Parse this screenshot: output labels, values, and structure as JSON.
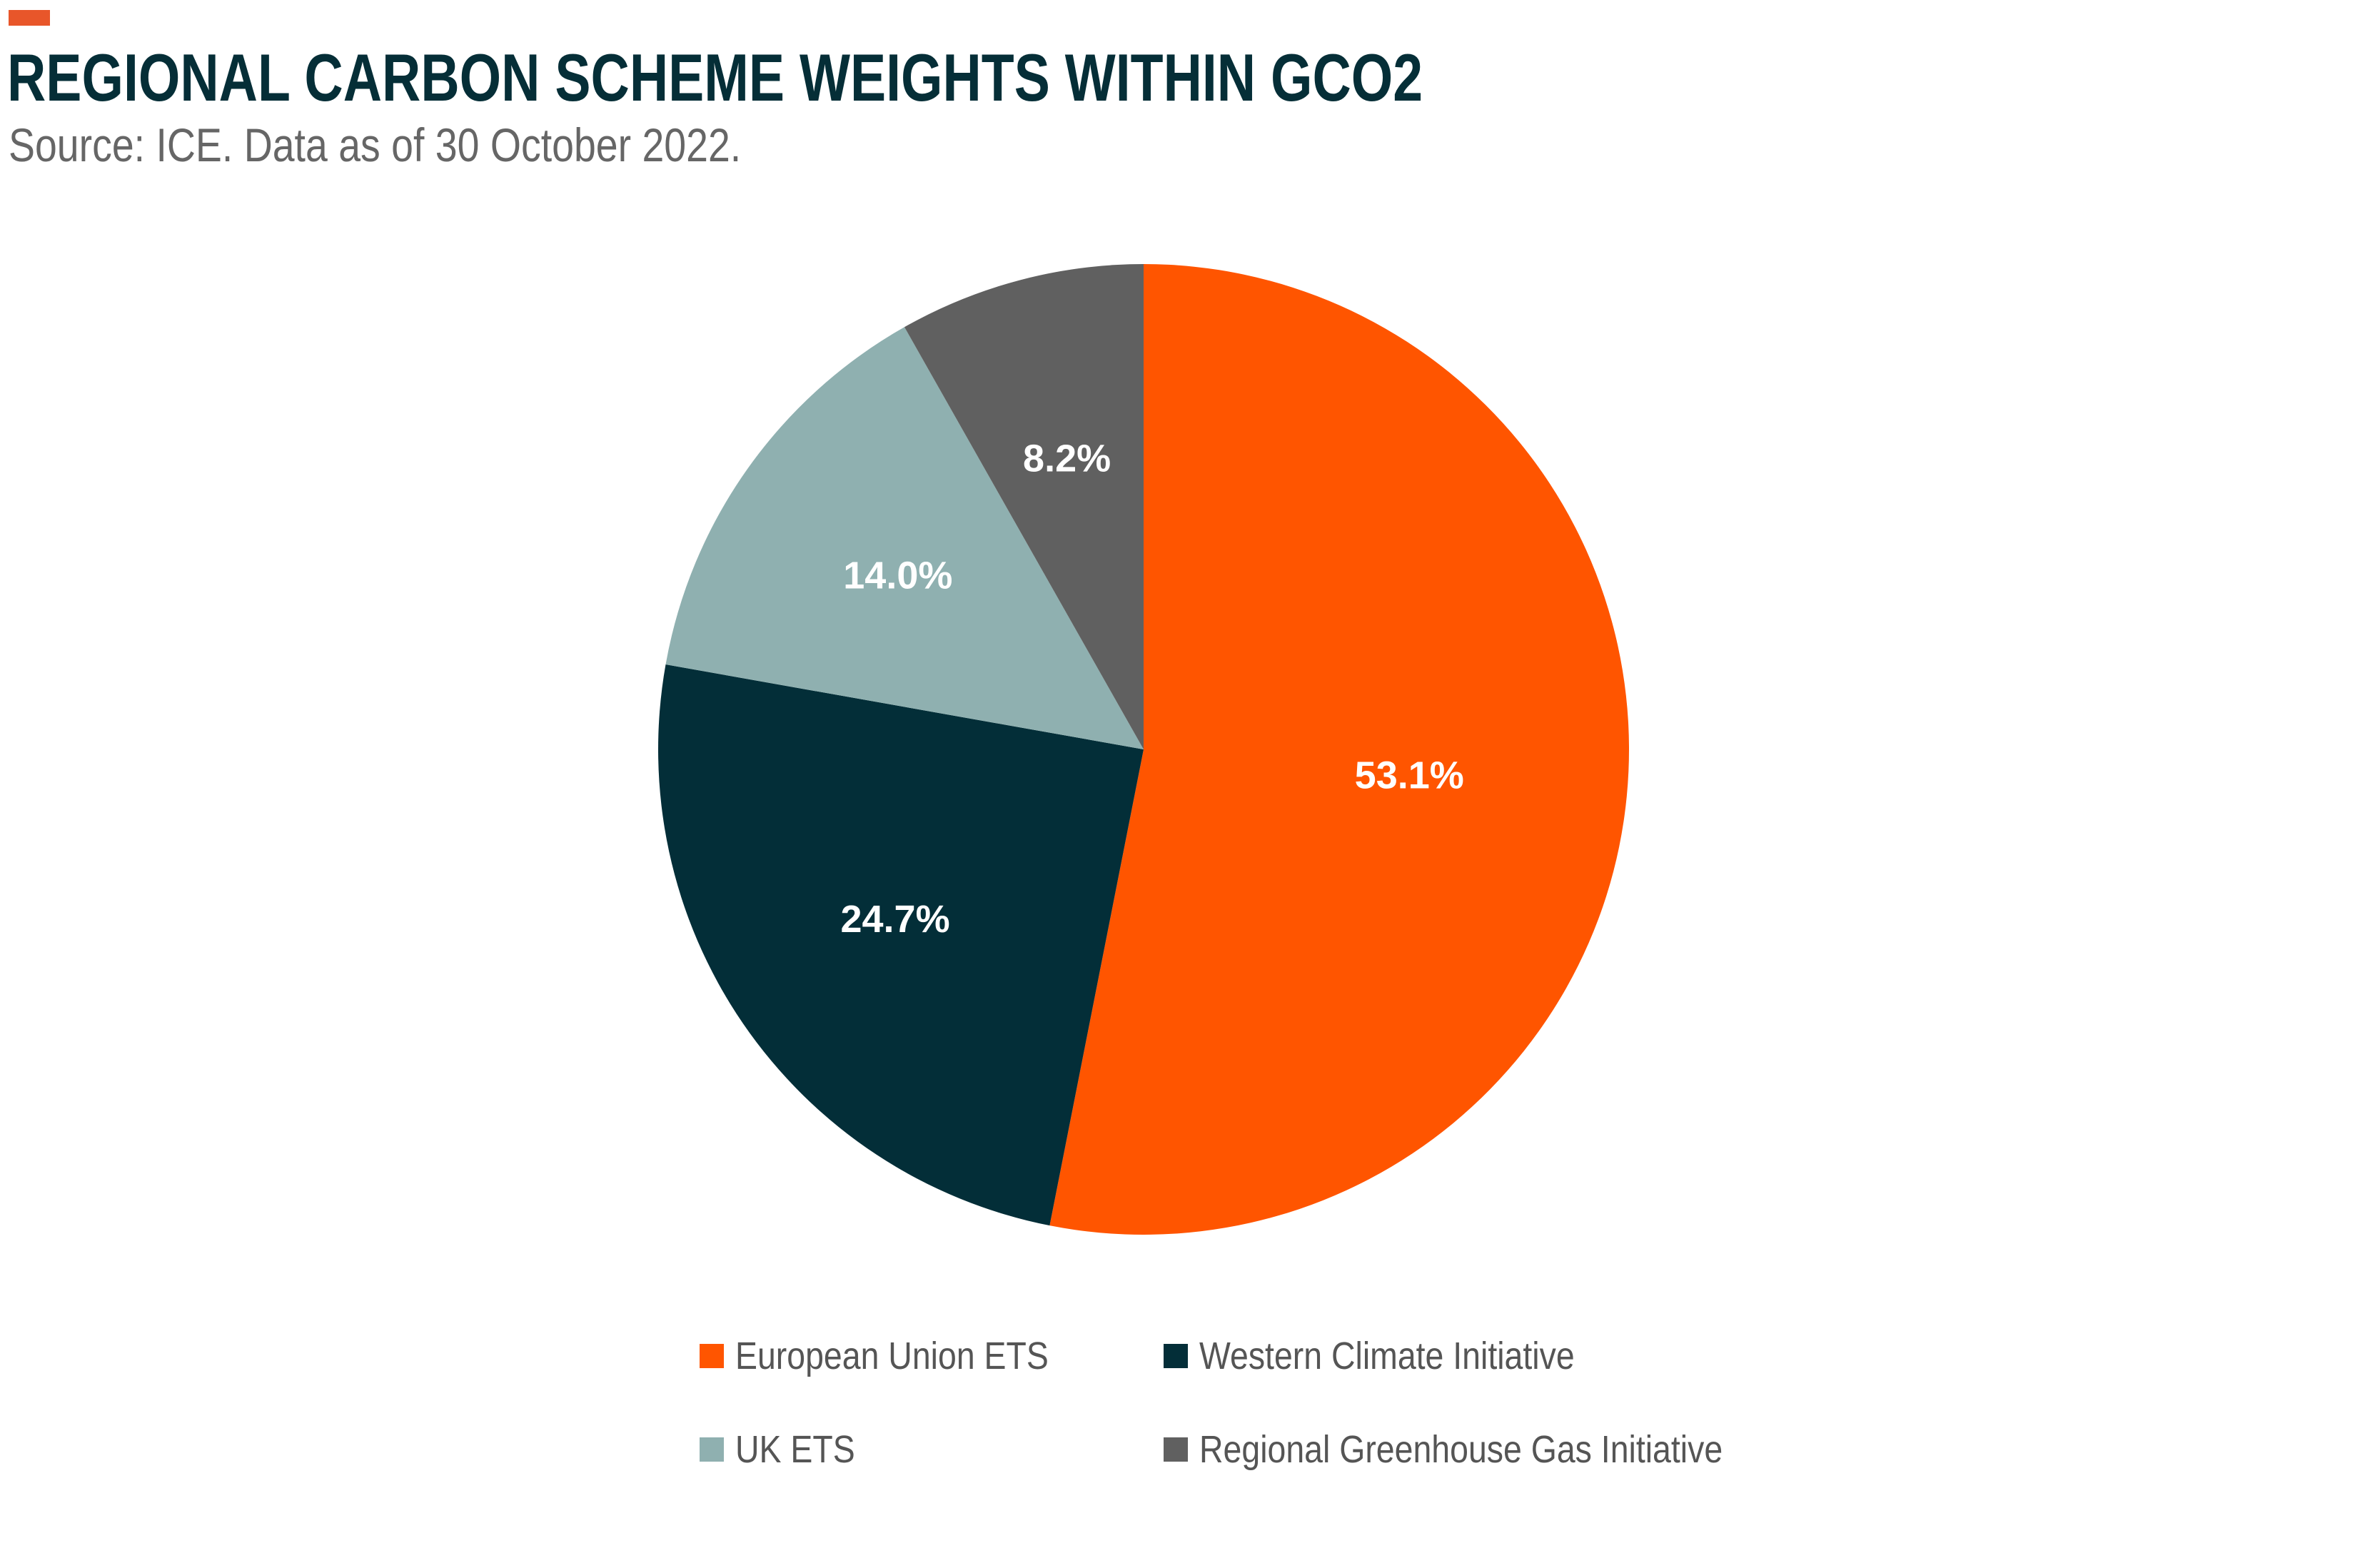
{
  "header": {
    "title": "REGIONAL CARBON SCHEME WEIGHTS WITHIN GCO2",
    "subtitle": "Source: ICE. Data as of 30 October 2022.",
    "accent_color": "#e8562a"
  },
  "chart_data": {
    "type": "pie",
    "title": "REGIONAL CARBON SCHEME WEIGHTS WITHIN GCO2",
    "subtitle": "Source: ICE. Data as of 30 October 2022.",
    "slices": [
      {
        "name": "European Union ETS",
        "value": 53.1,
        "label": "53.1%",
        "color": "#ff5500"
      },
      {
        "name": "Western Climate Initiative",
        "value": 24.7,
        "label": "24.7%",
        "color": "#032e38"
      },
      {
        "name": "UK ETS",
        "value": 14.0,
        "label": "14.0%",
        "color": "#8fb0b0"
      },
      {
        "name": "Regional Greenhouse Gas Initiative",
        "value": 8.2,
        "label": "8.2%",
        "color": "#606060"
      }
    ],
    "start": "12 o'clock",
    "direction": "clockwise",
    "legend_position": "bottom"
  },
  "legend": {
    "items": [
      {
        "label": "European Union ETS",
        "color": "#ff5500"
      },
      {
        "label": "Western Climate Initiative",
        "color": "#032e38"
      },
      {
        "label": "UK ETS",
        "color": "#8fb0b0"
      },
      {
        "label": "Regional Greenhouse Gas Initiative",
        "color": "#606060"
      }
    ]
  }
}
